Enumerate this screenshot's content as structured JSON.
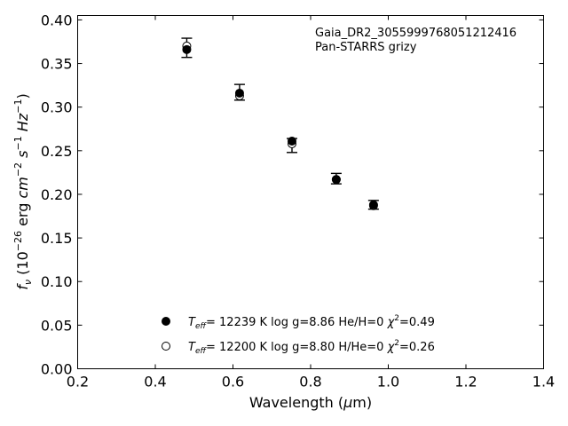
{
  "chart_data": {
    "type": "scatter",
    "title": "",
    "xlabel": "Wavelength (μm)",
    "ylabel": "fν (10⁻²⁶ erg cm⁻² s⁻¹ Hz⁻¹)",
    "xlim": [
      0.2,
      1.4
    ],
    "ylim": [
      0.0,
      0.405
    ],
    "xticks": [
      0.2,
      0.4,
      0.6,
      0.8,
      1.0,
      1.2,
      1.4
    ],
    "xtick_labels": [
      "0.2",
      "0.4",
      "0.6",
      "0.8",
      "1.0",
      "1.2",
      "1.4"
    ],
    "yticks": [
      0.0,
      0.05,
      0.1,
      0.15,
      0.2,
      0.25,
      0.3,
      0.35,
      0.4
    ],
    "ytick_labels": [
      "0.00",
      "0.05",
      "0.10",
      "0.15",
      "0.20",
      "0.25",
      "0.30",
      "0.35",
      "0.40"
    ],
    "grid": false,
    "annotation_lines": [
      "Gaia_DR2_3055999768051212416",
      "Pan-STARRS grizy"
    ],
    "observed": {
      "x": [
        0.481,
        0.617,
        0.752,
        0.866,
        0.962
      ],
      "y": [
        0.368,
        0.317,
        0.256,
        0.218,
        0.188
      ],
      "yerr": [
        0.011,
        0.009,
        0.008,
        0.006,
        0.005
      ]
    },
    "series": [
      {
        "marker": "filled-circle",
        "legend_label": "T_eff= 12239 K  log g=8.86  He/H=0  χ²=0.49",
        "legend_parts": {
          "sym": "T",
          "sub": "eff",
          "rest": "= 12239 K  log g=8.86  He/H=0  ",
          "chi": "χ",
          "sup": "2",
          "val": "=0.49"
        },
        "x": [
          0.481,
          0.617,
          0.752,
          0.866,
          0.962
        ],
        "y": [
          0.366,
          0.316,
          0.261,
          0.217,
          0.188
        ]
      },
      {
        "marker": "open-circle",
        "legend_label": "T_eff= 12200 K  log g=8.80  H/He=0  χ²=0.26",
        "legend_parts": {
          "sym": "T",
          "sub": "eff",
          "rest": "= 12200 K  log g=8.80  H/He=0  ",
          "chi": "χ",
          "sup": "2",
          "val": "=0.26"
        },
        "x": [
          0.481,
          0.617,
          0.752,
          0.866,
          0.962
        ],
        "y": [
          0.37,
          0.313,
          0.258,
          0.217,
          0.187
        ]
      }
    ],
    "legend_position": "lower-center"
  }
}
